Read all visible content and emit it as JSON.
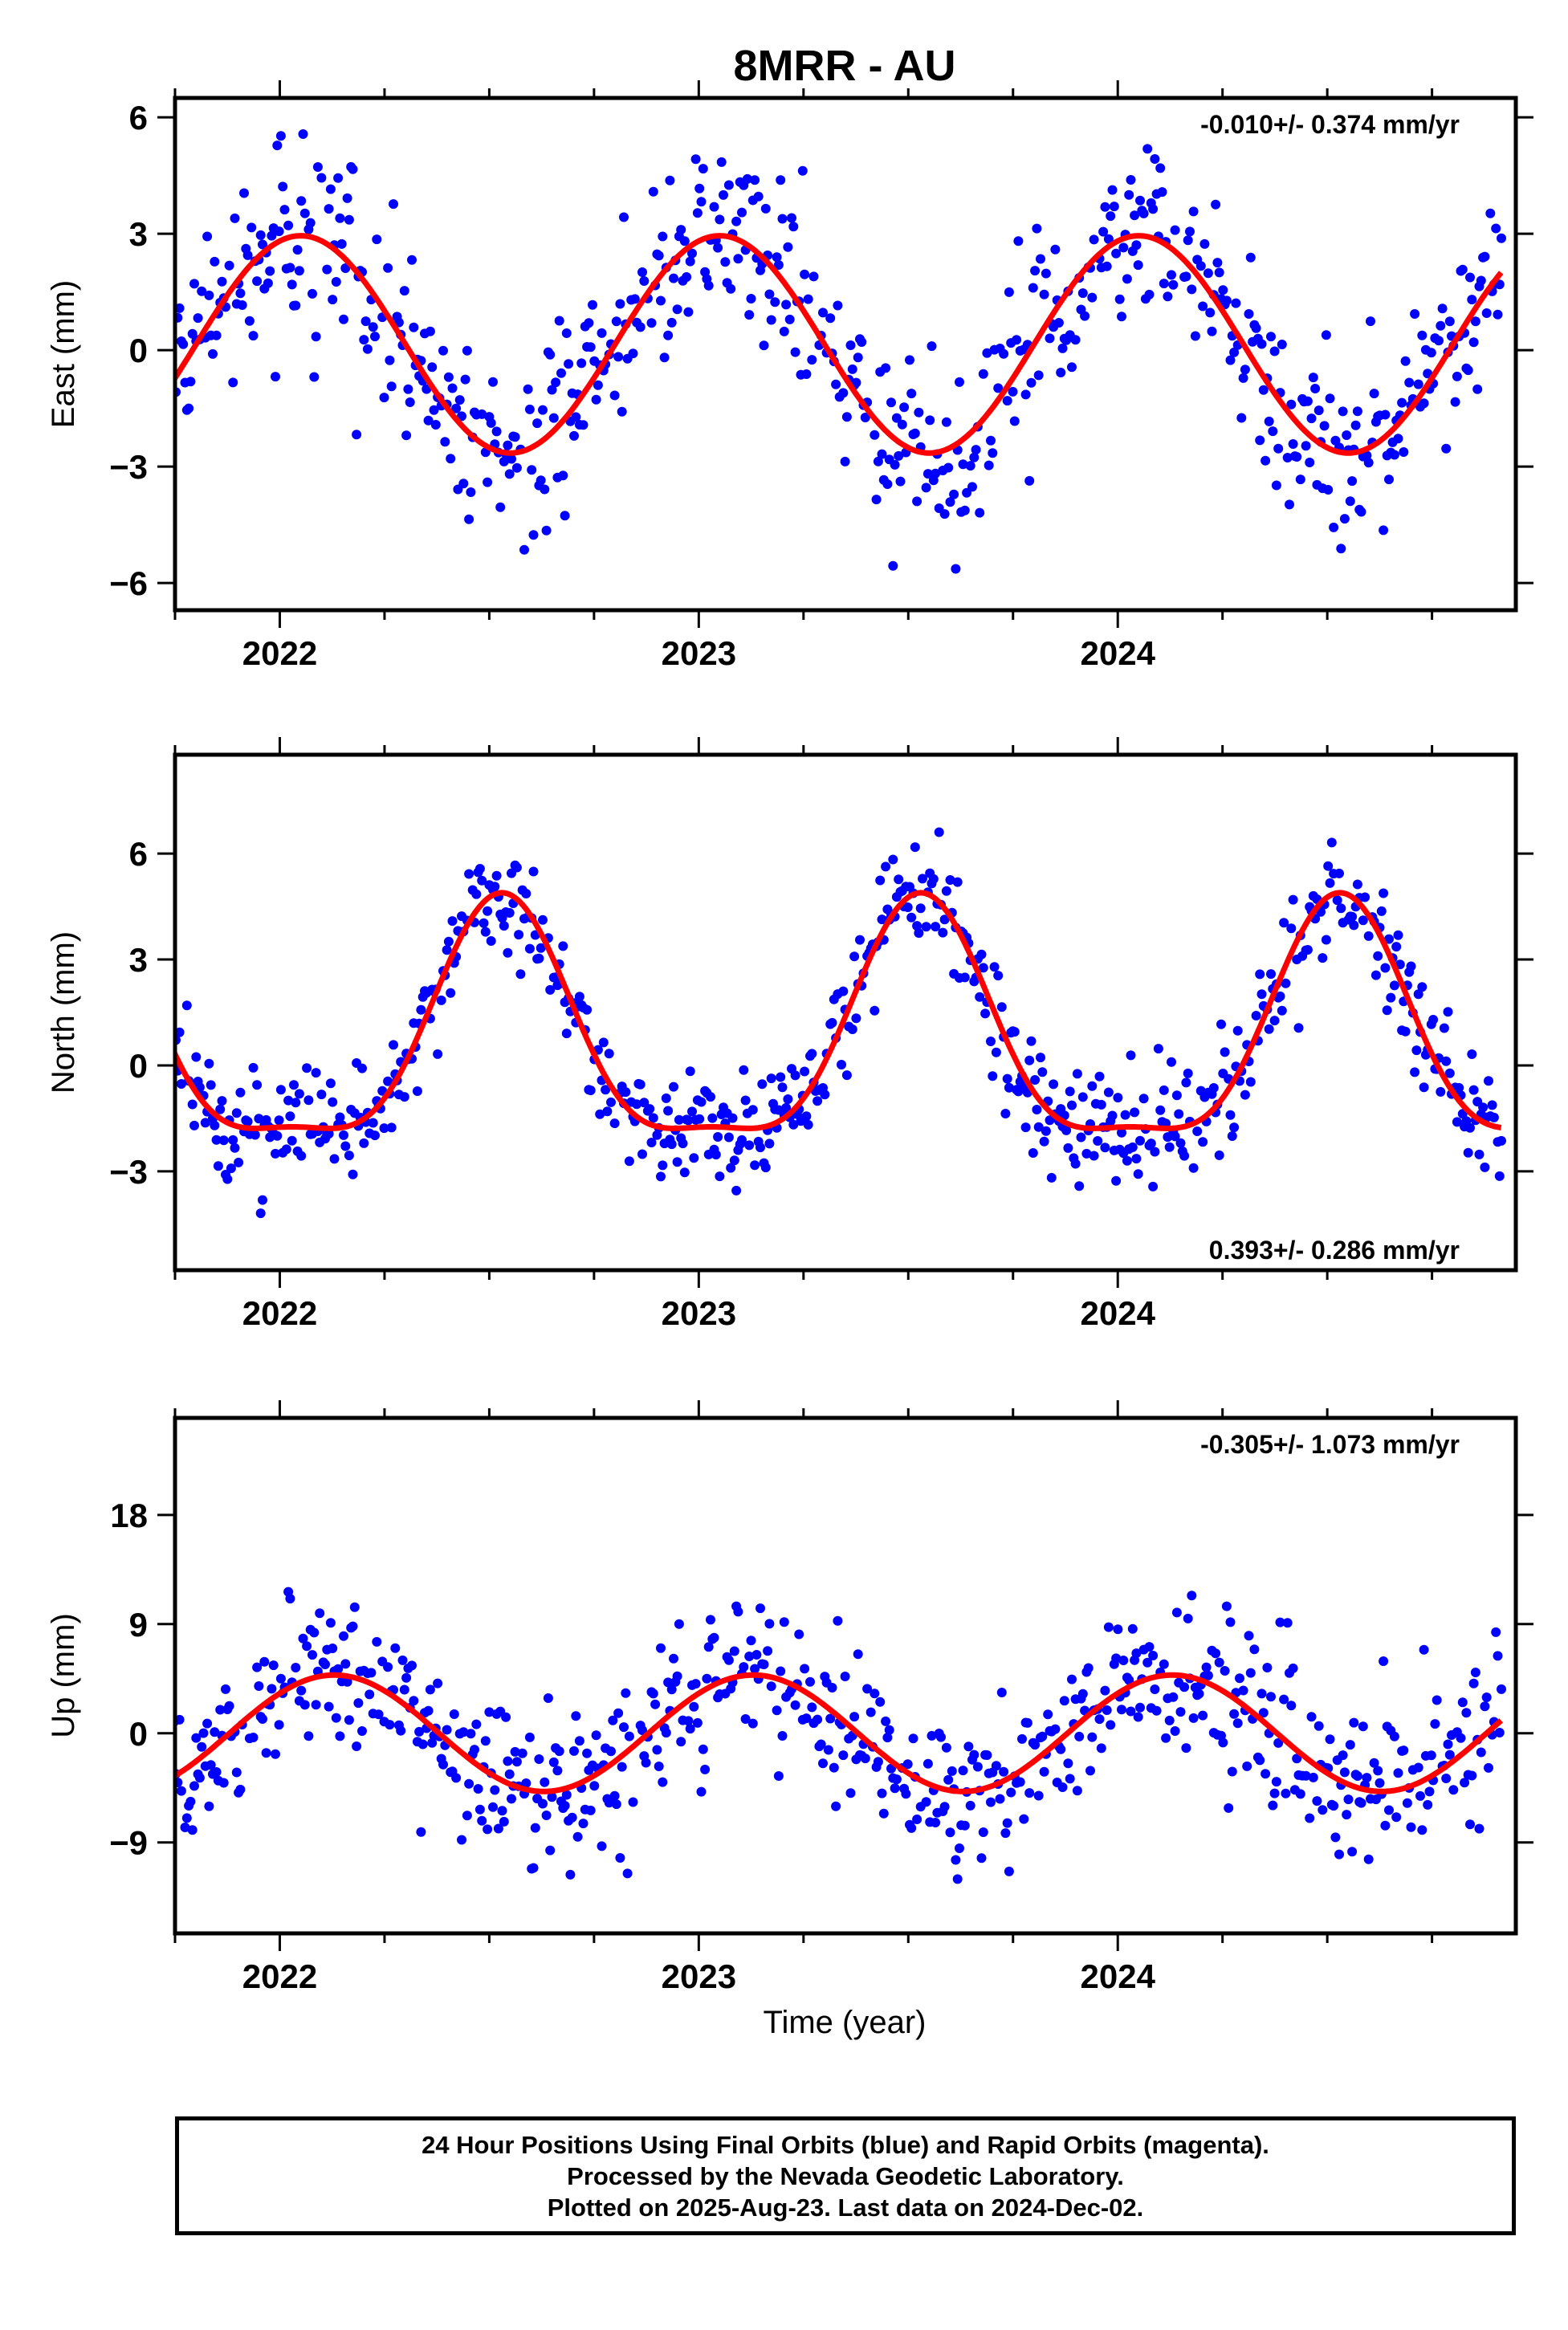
{
  "title": "8MRR - AU",
  "xlabel": "Time (year)",
  "footer": {
    "line1": "24 Hour Positions Using Final Orbits (blue) and Rapid Orbits (magenta).",
    "line2": "Processed by the Nevada Geodetic Laboratory.",
    "line3": "Plotted on 2025-Aug-23. Last data on 2024-Dec-02."
  },
  "colors": {
    "observations": "#0000ff",
    "model": "#ff0000",
    "frame": "#000000"
  },
  "chart_data": [
    {
      "type": "scatter",
      "component": "East",
      "ylabel": "East (mm)",
      "rate_text": "-0.010+/- 0.374 mm/yr",
      "rate_position": "top-right",
      "xlim": [
        2021.75,
        2024.95
      ],
      "ylim": [
        -6.7,
        6.5
      ],
      "yticks": [
        -6,
        -3,
        0,
        3,
        6
      ],
      "yticklabels": [
        "−6",
        "−3",
        "0",
        "3",
        "6"
      ],
      "xticks": [
        2022,
        2023,
        2024
      ],
      "xticklabels": [
        "2022",
        "2023",
        "2024"
      ],
      "grid": false,
      "data_start": 2021.73,
      "data_end": 2024.92,
      "model": {
        "mean": 0.15,
        "amplitude": 2.8,
        "peak_phase": 0.05,
        "shape": "annual"
      },
      "scatter_sigma": 1.2,
      "marker_count": 720,
      "series": [
        {
          "name": "Final Orbits",
          "color": "#0000ff",
          "marker": "dot"
        },
        {
          "name": "Model",
          "color": "#ff0000",
          "marker": "line"
        }
      ]
    },
    {
      "type": "scatter",
      "component": "North",
      "ylabel": "North (mm)",
      "rate_text": "0.393+/- 0.286 mm/yr",
      "rate_position": "bottom-right",
      "xlim": [
        2021.75,
        2024.95
      ],
      "ylim": [
        -5.8,
        8.8
      ],
      "yticks": [
        -3,
        0,
        3,
        6
      ],
      "yticklabels": [
        "−3",
        "0",
        "3",
        "6"
      ],
      "xticks": [
        2022,
        2023,
        2024
      ],
      "xticklabels": [
        "2022",
        "2023",
        "2024"
      ],
      "grid": false,
      "data_start": 2021.73,
      "data_end": 2024.92,
      "model": {
        "mean": 0.6,
        "amplitude": 3.9,
        "peak_phase": 0.53,
        "shape": "annual-sharp-peak"
      },
      "scatter_sigma": 0.8,
      "marker_count": 720,
      "series": [
        {
          "name": "Final Orbits",
          "color": "#0000ff",
          "marker": "dot"
        },
        {
          "name": "Model",
          "color": "#ff0000",
          "marker": "line"
        }
      ]
    },
    {
      "type": "scatter",
      "component": "Up",
      "ylabel": "Up (mm)",
      "rate_text": "-0.305+/- 1.073 mm/yr",
      "rate_position": "top-right",
      "xlim": [
        2021.75,
        2024.95
      ],
      "ylim": [
        -16.5,
        26.0
      ],
      "yticks": [
        -9,
        0,
        9,
        18
      ],
      "yticklabels": [
        "−9",
        "0",
        "9",
        "18"
      ],
      "xticks": [
        2022,
        2023,
        2024
      ],
      "xticklabels": [
        "2022",
        "2023",
        "2024"
      ],
      "grid": false,
      "data_start": 2021.73,
      "data_end": 2024.92,
      "model": {
        "mean": 0.0,
        "amplitude": 4.8,
        "peak_phase": 0.13,
        "shape": "annual"
      },
      "scatter_sigma": 3.3,
      "marker_count": 720,
      "series": [
        {
          "name": "Final Orbits",
          "color": "#0000ff",
          "marker": "dot"
        },
        {
          "name": "Model",
          "color": "#ff0000",
          "marker": "line"
        }
      ]
    }
  ]
}
